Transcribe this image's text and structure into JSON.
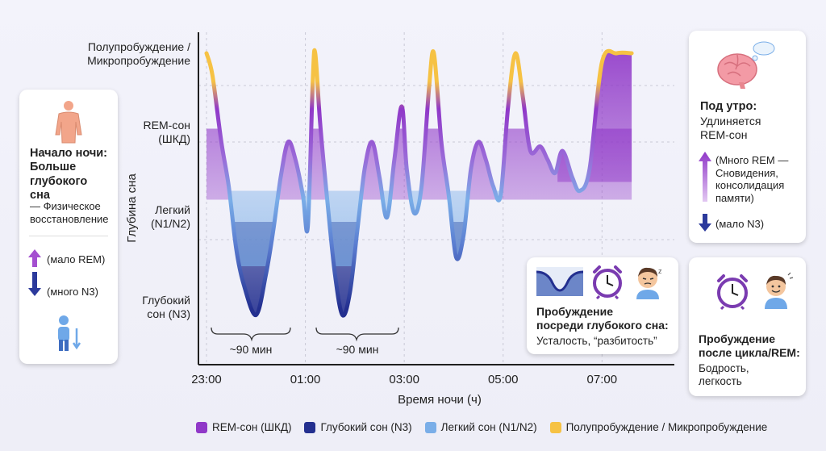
{
  "chart_data": {
    "type": "area",
    "xlabel": "Время ночи (ч)",
    "ylabel": "Глубина сна",
    "x_ticks": [
      "23:00",
      "01:00",
      "03:00",
      "05:00",
      "07:00"
    ],
    "y_levels": [
      {
        "key": "wake",
        "label": "Полупробуждение / Микропробуждение"
      },
      {
        "key": "rem",
        "label": "REM-сон (ШКД)"
      },
      {
        "key": "light",
        "label": "Легкий (N1/N2)"
      },
      {
        "key": "deep",
        "label": "Глубокий сон (N3)"
      }
    ],
    "x_range_hours": [
      23,
      32.3
    ],
    "y_range_depth": [
      0,
      3
    ],
    "series": [
      {
        "name": "Глубина сна",
        "points": [
          [
            23.0,
            0.0
          ],
          [
            23.12,
            0.25
          ],
          [
            23.3,
            1.0
          ],
          [
            23.45,
            1.5
          ],
          [
            23.6,
            2.2
          ],
          [
            23.75,
            2.6
          ],
          [
            24.0,
            2.95
          ],
          [
            24.2,
            2.5
          ],
          [
            24.35,
            2.0
          ],
          [
            24.5,
            1.4
          ],
          [
            24.65,
            1.0
          ],
          [
            24.8,
            1.2
          ],
          [
            24.95,
            1.6
          ],
          [
            25.05,
            1.95
          ],
          [
            25.15,
            0.3
          ],
          [
            25.2,
            0.0
          ],
          [
            25.3,
            0.8
          ],
          [
            25.45,
            1.7
          ],
          [
            25.6,
            2.5
          ],
          [
            25.75,
            2.95
          ],
          [
            25.9,
            2.7
          ],
          [
            26.05,
            2.0
          ],
          [
            26.2,
            1.3
          ],
          [
            26.35,
            1.0
          ],
          [
            26.5,
            1.4
          ],
          [
            26.65,
            1.85
          ],
          [
            26.8,
            1.2
          ],
          [
            26.95,
            0.6
          ],
          [
            27.05,
            1.3
          ],
          [
            27.2,
            1.8
          ],
          [
            27.35,
            1.5
          ],
          [
            27.5,
            0.4
          ],
          [
            27.6,
            0.0
          ],
          [
            27.75,
            1.0
          ],
          [
            27.9,
            1.6
          ],
          [
            28.05,
            2.3
          ],
          [
            28.2,
            2.05
          ],
          [
            28.35,
            1.3
          ],
          [
            28.5,
            1.0
          ],
          [
            28.65,
            1.2
          ],
          [
            28.8,
            1.5
          ],
          [
            28.95,
            1.6
          ],
          [
            29.1,
            0.6
          ],
          [
            29.25,
            0.0
          ],
          [
            29.4,
            0.5
          ],
          [
            29.55,
            1.1
          ],
          [
            29.75,
            1.05
          ],
          [
            29.9,
            1.2
          ],
          [
            30.05,
            1.35
          ],
          [
            30.2,
            1.1
          ],
          [
            30.4,
            1.4
          ],
          [
            30.55,
            1.55
          ],
          [
            30.75,
            1.3
          ],
          [
            31.0,
            0.1
          ],
          [
            31.3,
            0.0
          ],
          [
            31.6,
            0.0
          ]
        ],
        "color_map": {
          "wake": "#f6c244",
          "rem": "#9038c8",
          "light": "#7aaee8",
          "deep": "#232f8f"
        }
      }
    ],
    "annotations": [
      {
        "label": "~90 мин",
        "from": "23:00",
        "to": "01:00"
      },
      {
        "label": "~90 мин",
        "from": "01:00",
        "to": "03:00"
      }
    ],
    "legend_position": "bottom",
    "legend": [
      {
        "name": "REM-сон (ШКД)",
        "color": "#9038c8"
      },
      {
        "name": "Глубокий сон (N3)",
        "color": "#232f8f"
      },
      {
        "name": "Легкий сон (N1/N2)",
        "color": "#7aaee8"
      },
      {
        "name": "Полупробуждение / Микропробуждение",
        "color": "#f6c244"
      }
    ],
    "grid": true
  },
  "axis_labels": {
    "wake_line1": "Полупробуждение /",
    "wake_line2": "Микропробуждение",
    "rem_line1": "REM-сон",
    "rem_line2": "(ШКД)",
    "light_line1": "Легкий",
    "light_line2": "(N1/N2)",
    "deep_line1": "Глубокий",
    "deep_line2": "сон (N3)",
    "x_title": "Время ночи (ч)",
    "y_title": "Глубина сна",
    "span1": "~90 мин",
    "span2": "~90 мин"
  },
  "left_card": {
    "title_l1": "Начало ночи:",
    "title_l2": "Больше",
    "title_l3": "глубокого",
    "title_l4": "сна",
    "sub_l1": "— Физическое",
    "sub_l2": "восстановление",
    "rem_note": "(мало REM)",
    "n3_note": "(много N3)"
  },
  "right_top_card": {
    "title": "Под утро:",
    "sub_l1": "Удлиняется",
    "sub_l2": "REM-сон",
    "note_l1": "(Много REM —",
    "note_l2": "Сновидения,",
    "note_l3": "консолидация",
    "note_l4": "памяти)",
    "n3_note": "(мало N3)"
  },
  "mid_card": {
    "title_l1": "Пробуждение",
    "title_l2": "посреди глубокого сна:",
    "sub": "Усталость, “разбитость”"
  },
  "right_bottom_card": {
    "title_l1": "Пробуждение",
    "title_l2": "после цикла/REM:",
    "sub_l1": "Бодрость,",
    "sub_l2": "легкость"
  },
  "colors": {
    "rem": "#9038c8",
    "deep": "#232f8f",
    "light": "#7aaee8",
    "wake": "#f6c244"
  }
}
